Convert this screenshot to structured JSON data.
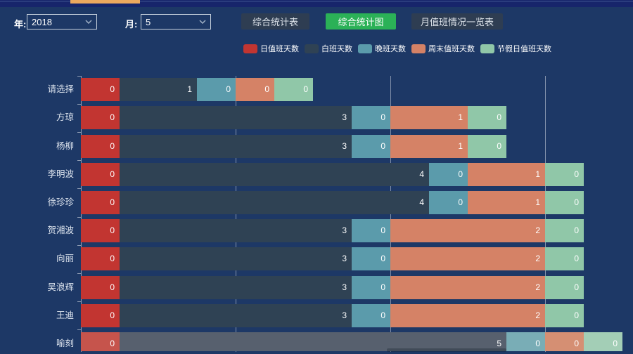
{
  "top_tab_color": "#eda95e",
  "controls": {
    "year_label": "年:",
    "year_value": "2018",
    "month_label": "月:",
    "month_value": "5",
    "buttons": [
      {
        "label": "综合统计表",
        "active": false
      },
      {
        "label": "综合统计图",
        "active": true
      },
      {
        "label": "月值班情况一览表",
        "active": false
      }
    ],
    "active_button_color": "#2bb157"
  },
  "chart_data": {
    "type": "bar",
    "orientation": "horizontal",
    "stacked": true,
    "categories": [
      "请选择",
      "方琼",
      "杨柳",
      "李明波",
      "徐珍珍",
      "贺湘波",
      "向丽",
      "吴浪辉",
      "王迪",
      "喻刻"
    ],
    "series": [
      {
        "name": "日值班天数",
        "color": "#c23531",
        "faded_color": "#c6544c",
        "values": [
          0,
          0,
          0,
          0,
          0,
          0,
          0,
          0,
          0,
          0
        ]
      },
      {
        "name": "白班天数",
        "color": "#2f4254",
        "faded_color": "#57606e",
        "values": [
          1,
          3,
          3,
          4,
          4,
          3,
          3,
          3,
          3,
          5
        ]
      },
      {
        "name": "晚班天数",
        "color": "#5b9bab",
        "faded_color": "#79adb6",
        "values": [
          0,
          0,
          0,
          0,
          0,
          0,
          0,
          0,
          0,
          0
        ]
      },
      {
        "name": "周末值班天数",
        "color": "#d58266",
        "faded_color": "#d58f73",
        "values": [
          0,
          1,
          1,
          1,
          1,
          2,
          2,
          2,
          2,
          0
        ]
      },
      {
        "name": "节假日值班天数",
        "color": "#90c7a8",
        "faded_color": "#a3ceb6",
        "values": [
          0,
          0,
          0,
          0,
          0,
          0,
          0,
          0,
          0,
          0
        ]
      }
    ],
    "faded_row_index": 9,
    "x_gridline_values": [
      2,
      4,
      6
    ],
    "legend_position": "top",
    "grid": true
  }
}
